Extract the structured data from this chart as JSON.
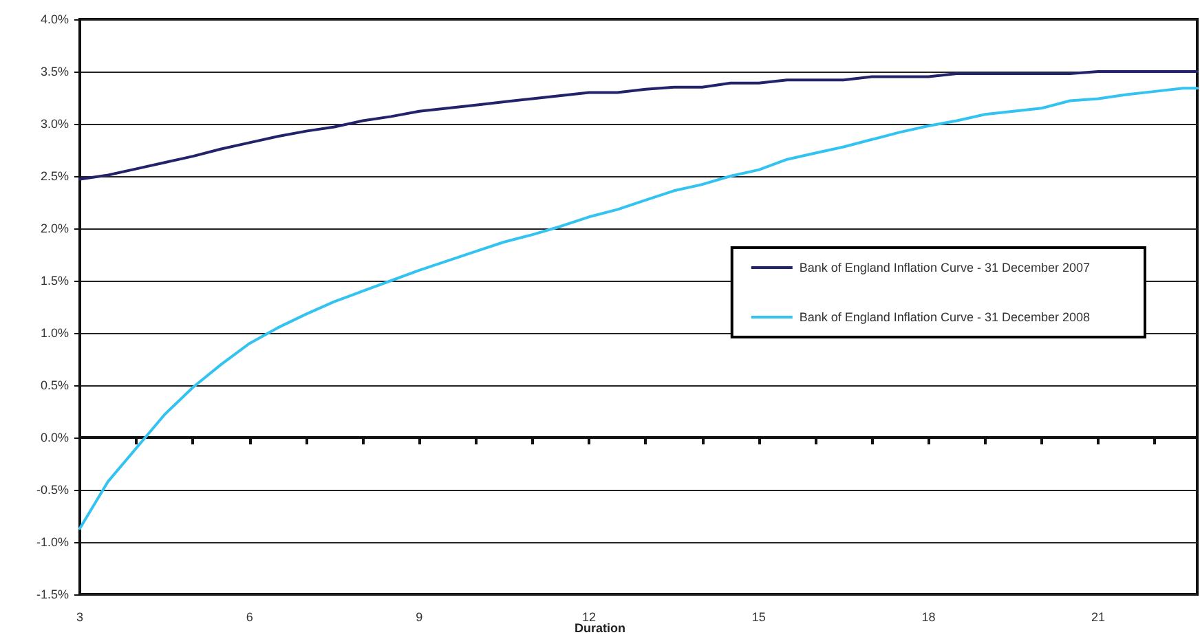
{
  "chart_data": {
    "type": "line",
    "xlabel": "Duration",
    "xlim": [
      3,
      22.75
    ],
    "xticks": [
      3,
      {
        "value": 4,
        "label": null
      },
      {
        "value": 5,
        "label": null
      },
      6,
      {
        "value": 7,
        "label": null
      },
      {
        "value": 8,
        "label": null
      },
      9,
      {
        "value": 10,
        "label": null
      },
      {
        "value": 11,
        "label": null
      },
      12,
      {
        "value": 13,
        "label": null
      },
      {
        "value": 14,
        "label": null
      },
      15,
      {
        "value": 16,
        "label": null
      },
      {
        "value": 17,
        "label": null
      },
      18,
      {
        "value": 19,
        "label": null
      },
      {
        "value": 20,
        "label": null
      },
      21,
      {
        "value": 22,
        "label": null
      }
    ],
    "ylim": [
      -1.5,
      4.0
    ],
    "yticks": [
      {
        "value": -1.5,
        "label": "-1.5%"
      },
      {
        "value": -1.0,
        "label": "-1.0%"
      },
      {
        "value": -0.5,
        "label": "-0.5%"
      },
      {
        "value": 0,
        "label": "0.0%"
      },
      {
        "value": 0.5,
        "label": "0.5%"
      },
      {
        "value": 1.0,
        "label": "1.0%"
      },
      {
        "value": 1.5,
        "label": "1.5%"
      },
      {
        "value": 2.0,
        "label": "2.0%"
      },
      {
        "value": 2.5,
        "label": "2.5%"
      },
      {
        "value": 3.0,
        "label": "3.0%"
      },
      {
        "value": 3.5,
        "label": "3.5%"
      },
      {
        "value": 4.0,
        "label": "4.0%"
      }
    ],
    "grid": "y",
    "legend": "right",
    "marker": "none",
    "line_style": "solid",
    "x": [
      3,
      3.5,
      4,
      4.5,
      5,
      5.5,
      6,
      6.5,
      7,
      7.5,
      8,
      8.5,
      9,
      9.5,
      10,
      10.5,
      11,
      11.5,
      12,
      12.5,
      13,
      13.5,
      14,
      14.5,
      15,
      15.5,
      16,
      16.5,
      17,
      17.5,
      18,
      18.5,
      19,
      19.5,
      20,
      20.5,
      21,
      21.5,
      22,
      22.5,
      22.75
    ],
    "series": [
      {
        "name": "Bank of England Inflation Curve - 31 December 2007",
        "color": "#23236b",
        "values": [
          2.47,
          2.51,
          2.57,
          2.63,
          2.69,
          2.76,
          2.82,
          2.88,
          2.93,
          2.97,
          3.03,
          3.07,
          3.12,
          3.15,
          3.18,
          3.21,
          3.24,
          3.27,
          3.3,
          3.3,
          3.33,
          3.35,
          3.35,
          3.39,
          3.39,
          3.42,
          3.42,
          3.42,
          3.45,
          3.45,
          3.45,
          3.48,
          3.48,
          3.48,
          3.48,
          3.48,
          3.5,
          3.5,
          3.5,
          3.5,
          3.5
        ]
      },
      {
        "name": "Bank of England Inflation Curve - 31 December 2008",
        "color": "#33c3f0",
        "values": [
          -0.87,
          -0.42,
          -0.1,
          0.22,
          0.48,
          0.7,
          0.9,
          1.05,
          1.18,
          1.3,
          1.4,
          1.5,
          1.6,
          1.69,
          1.78,
          1.87,
          1.94,
          2.02,
          2.11,
          2.18,
          2.27,
          2.36,
          2.42,
          2.5,
          2.56,
          2.66,
          2.72,
          2.78,
          2.85,
          2.92,
          2.98,
          3.03,
          3.09,
          3.12,
          3.15,
          3.22,
          3.24,
          3.28,
          3.31,
          3.34,
          3.34
        ]
      }
    ]
  }
}
